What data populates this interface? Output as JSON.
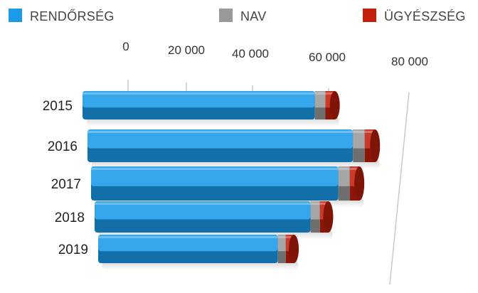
{
  "legend": [
    {
      "label": "RENDŐRSÉG",
      "color": "#1a9ae8"
    },
    {
      "label": "NAV",
      "color": "#9a9a9a"
    },
    {
      "label": "ÜGYÉSZSÉG",
      "color": "#c41e0c"
    }
  ],
  "chart_data": {
    "type": "bar",
    "orientation": "horizontal",
    "stacked": true,
    "categories": [
      "2015",
      "2016",
      "2017",
      "2018",
      "2019"
    ],
    "series": [
      {
        "name": "RENDŐRSÉG",
        "values": [
          62000,
          67500,
          65000,
          57500,
          47500
        ]
      },
      {
        "name": "NAV",
        "values": [
          2800,
          3000,
          3000,
          2500,
          2100
        ]
      },
      {
        "name": "ÜGYÉSZSÉG",
        "values": [
          2500,
          2600,
          2500,
          2200,
          2100
        ]
      }
    ],
    "xlim": [
      0,
      80000
    ],
    "xticks": [
      "0",
      "20 000",
      "40 000",
      "60 000",
      "80 000"
    ],
    "legend_position": "top",
    "grid": true
  }
}
